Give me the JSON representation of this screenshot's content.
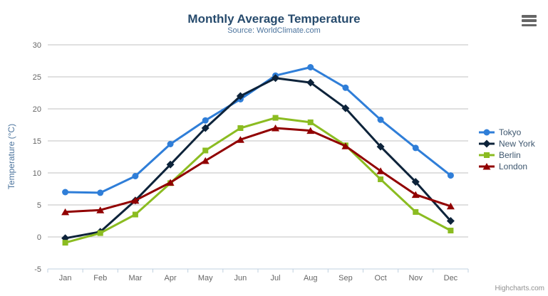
{
  "chart": {
    "context_menu_icon": "hamburger-icon",
    "credits_label": "Highcharts.com"
  },
  "colors": {
    "title": "#274b6d",
    "subtitle": "#4d759e",
    "axis_title": "#4d759e",
    "axis_labels": "#666666",
    "gridline": "#c0c0c0",
    "axis_line": "#c0d0e0",
    "legend_text": "#3e576f",
    "credits": "#909090",
    "menu_icon": "#666666"
  },
  "chart_data": {
    "type": "line",
    "title": "Monthly Average Temperature",
    "subtitle": "Source: WorldClimate.com",
    "xlabel": "",
    "ylabel": "Temperature (°C)",
    "categories": [
      "Jan",
      "Feb",
      "Mar",
      "Apr",
      "May",
      "Jun",
      "Jul",
      "Aug",
      "Sep",
      "Oct",
      "Nov",
      "Dec"
    ],
    "ylim": [
      -5,
      30
    ],
    "ytick_step": 5,
    "ytick_labels": [
      "-5",
      "0",
      "5",
      "10",
      "15",
      "20",
      "25",
      "30"
    ],
    "grid": true,
    "legend_position": "right-middle",
    "series": [
      {
        "name": "Tokyo",
        "color": "#2f7ed8",
        "marker": "circle",
        "values": [
          7.0,
          6.9,
          9.5,
          14.5,
          18.2,
          21.5,
          25.2,
          26.5,
          23.3,
          18.3,
          13.9,
          9.6
        ]
      },
      {
        "name": "New York",
        "color": "#0d233a",
        "marker": "diamond",
        "values": [
          -0.2,
          0.8,
          5.7,
          11.3,
          17.0,
          22.0,
          24.8,
          24.1,
          20.1,
          14.1,
          8.6,
          2.5
        ]
      },
      {
        "name": "Berlin",
        "color": "#8bbc21",
        "marker": "square",
        "values": [
          -0.9,
          0.6,
          3.5,
          8.4,
          13.5,
          17.0,
          18.6,
          17.9,
          14.3,
          9.0,
          3.9,
          1.0
        ]
      },
      {
        "name": "London",
        "color": "#910000",
        "marker": "triangle",
        "values": [
          3.9,
          4.2,
          5.7,
          8.5,
          11.9,
          15.2,
          17.0,
          16.6,
          14.2,
          10.3,
          6.6,
          4.8
        ]
      }
    ],
    "credits": "Highcharts.com"
  }
}
